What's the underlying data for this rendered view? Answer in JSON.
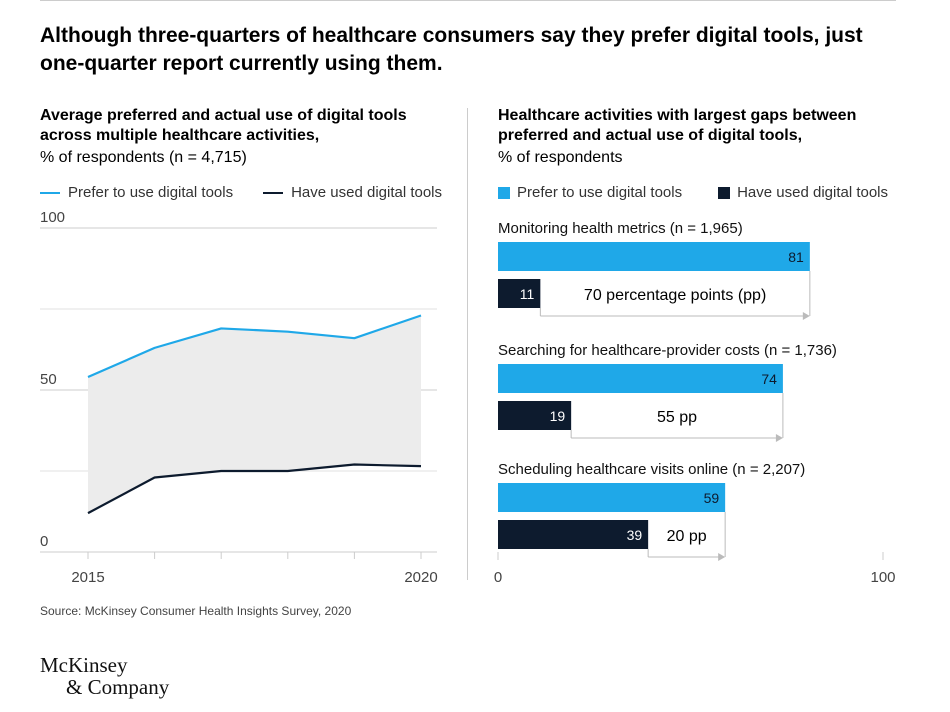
{
  "headline": "Although three-quarters of healthcare consumers say they prefer digital tools, just one-quarter report currently using them.",
  "source": "Source: McKinsey Consumer Health Insights Survey, 2020",
  "logo": {
    "line1": "McKinsey",
    "line2": "& Company"
  },
  "colors": {
    "prefer": "#1fa8e8",
    "used": "#0d1b2e",
    "fill": "#ececec",
    "grid": "#cccccc",
    "axis_text": "#444444"
  },
  "chart_data": [
    {
      "type": "line",
      "title": "Average preferred and actual use of digital tools across multiple healthcare activities,",
      "subtitle": "% of respondents (n = 4,715)",
      "legend": [
        "Prefer to use digital tools",
        "Have used digital tools"
      ],
      "x": [
        2015,
        2016,
        2017,
        2018,
        2019,
        2020
      ],
      "x_tick_labels": [
        "2015",
        "2020"
      ],
      "y_ticks": [
        "0",
        "50",
        "100"
      ],
      "ylim": [
        0,
        100
      ],
      "series": [
        {
          "name": "Prefer to use digital tools",
          "values": [
            54,
            63,
            69,
            68,
            66,
            73
          ]
        },
        {
          "name": "Have used digital tools",
          "values": [
            12,
            23,
            25,
            25,
            27,
            26.5
          ]
        }
      ],
      "grid": true
    },
    {
      "type": "bar",
      "title": "Healthcare activities with largest gaps between preferred and actual use of digital tools,",
      "subtitle": "% of respondents",
      "legend": [
        "Prefer to use digital tools",
        "Have used digital tools"
      ],
      "xlim": [
        0,
        100
      ],
      "x_ticks": [
        "0",
        "100"
      ],
      "groups": [
        {
          "label": "Monitoring health metrics (n = 1,965)",
          "prefer": 81,
          "used": 11,
          "gap_label": "70 percentage points (pp)"
        },
        {
          "label": "Searching for healthcare-provider costs (n = 1,736)",
          "prefer": 74,
          "used": 19,
          "gap_label": "55 pp"
        },
        {
          "label": "Scheduling healthcare visits online (n = 2,207)",
          "prefer": 59,
          "used": 39,
          "gap_label": "20 pp"
        }
      ]
    }
  ]
}
